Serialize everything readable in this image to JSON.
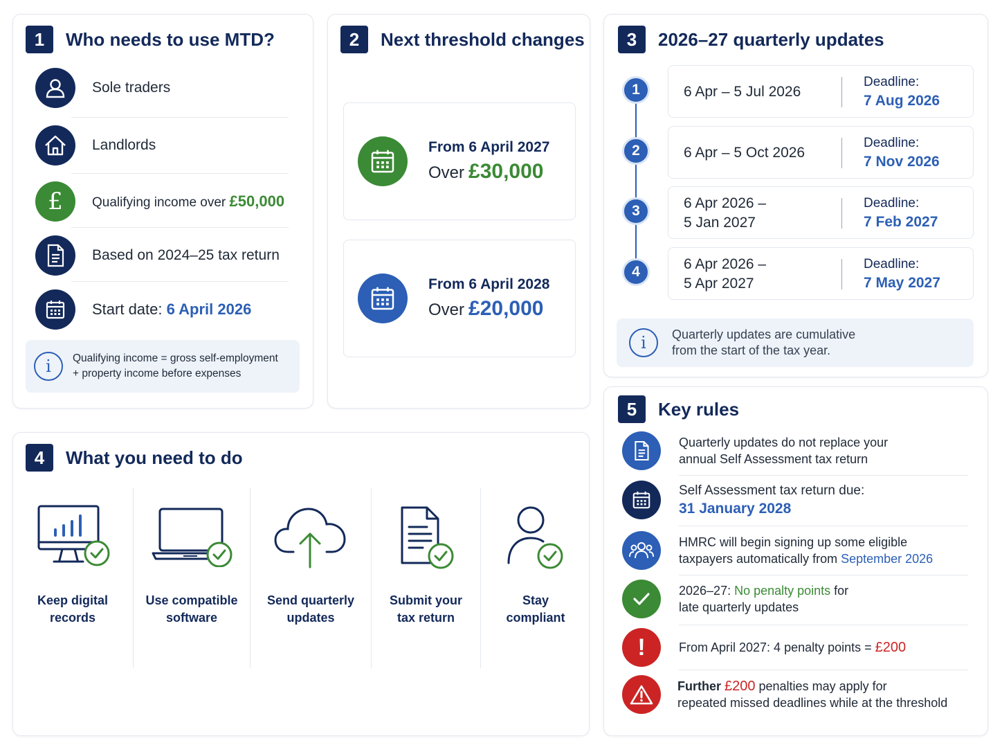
{
  "section1": {
    "number": "1",
    "title": "Who needs to use MTD?",
    "items": [
      {
        "icon": "person-icon",
        "text": "Sole traders"
      },
      {
        "icon": "house-icon",
        "text": "Landlords"
      },
      {
        "icon": "pound-icon",
        "text": "Qualifying income over ",
        "highlight": "£50,000"
      },
      {
        "icon": "document-icon",
        "text": "Based on 2024–25 tax return"
      },
      {
        "icon": "calendar-icon",
        "text": "Start date: ",
        "highlight": "6 April 2026"
      }
    ],
    "info_line1": "Qualifying income = gross self-employment",
    "info_line2": "+ property income before expenses"
  },
  "section2": {
    "number": "2",
    "title": "Next threshold changes",
    "items": [
      {
        "from": "From 6 April 2027",
        "over": "Over",
        "amount": "£30,000",
        "color": "#3b8a35"
      },
      {
        "from": "From 6 April 2028",
        "over": "Over",
        "amount": "£20,000",
        "color": "#2c5fb5"
      }
    ]
  },
  "section3": {
    "number": "3",
    "title": "2026–27 quarterly updates",
    "quarters": [
      {
        "n": "1",
        "line1": "6 Apr – 5 Jul 2026",
        "line2": "",
        "deadline_label": "Deadline:",
        "deadline": "7 Aug 2026"
      },
      {
        "n": "2",
        "line1": "6 Apr – 5 Oct 2026",
        "line2": "",
        "deadline_label": "Deadline:",
        "deadline": "7 Nov 2026"
      },
      {
        "n": "3",
        "line1": "6 Apr 2026 –",
        "line2": "5 Jan 2027",
        "deadline_label": "Deadline:",
        "deadline": "7 Feb 2027"
      },
      {
        "n": "4",
        "line1": "6 Apr 2026 –",
        "line2": "5 Apr 2027",
        "deadline_label": "Deadline:",
        "deadline": "7 May 2027"
      }
    ],
    "info_line1": "Quarterly updates are cumulative",
    "info_line2": "from the start of the tax year."
  },
  "section4": {
    "number": "4",
    "title": "What you need to do",
    "steps": [
      {
        "icon": "monitor-chart-icon",
        "line1": "Keep digital",
        "line2": "records"
      },
      {
        "icon": "laptop-icon",
        "line1": "Use compatible",
        "line2": "software"
      },
      {
        "icon": "cloud-upload-icon",
        "line1": "Send quarterly",
        "line2": "updates"
      },
      {
        "icon": "document-check-icon",
        "line1": "Submit your",
        "line2": "tax return"
      },
      {
        "icon": "person-check-icon",
        "line1": "Stay",
        "line2": "compliant"
      }
    ]
  },
  "section5": {
    "number": "5",
    "title": "Key rules",
    "rules": [
      {
        "icon": "document-icon",
        "line1": "Quarterly updates do not replace your",
        "line2": "annual Self Assessment tax return"
      },
      {
        "icon": "calendar-icon",
        "line1": "Self Assessment tax return due:",
        "line2": "31 January 2028"
      },
      {
        "icon": "people-icon",
        "line1": "HMRC will begin signing up some eligible",
        "line2a": "taxpayers automatically from ",
        "line2b": "September 2026"
      },
      {
        "icon": "check-icon",
        "line1a": "2026–27: ",
        "line1b": "No penalty points",
        "line1c": " for",
        "line2": "late quarterly updates"
      },
      {
        "icon": "exclamation-icon",
        "line1a": "From April 2027: 4 penalty points = ",
        "line1b": "£200"
      },
      {
        "icon": "warning-icon",
        "line1a": "Further ",
        "line1b": "£200",
        "line1c": " penalties may apply for",
        "line2": "repeated missed deadlines while at the threshold"
      }
    ]
  }
}
